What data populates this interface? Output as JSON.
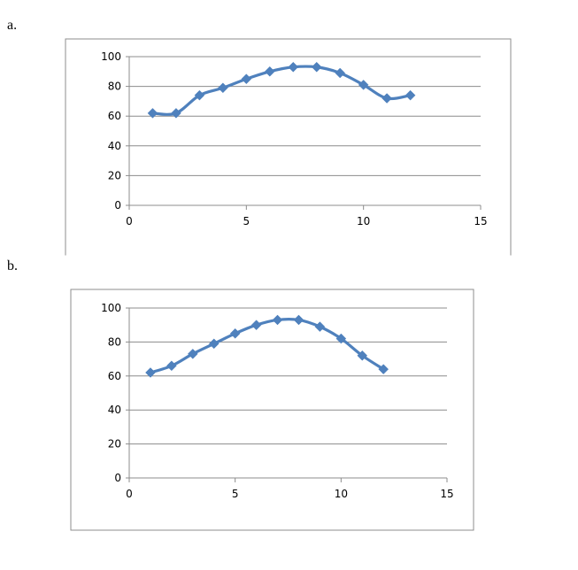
{
  "panels": [
    {
      "label": "a."
    },
    {
      "label": "b."
    }
  ],
  "chart_data": [
    {
      "type": "scatter",
      "title": "",
      "xlabel": "",
      "ylabel": "",
      "xlim": [
        0,
        15
      ],
      "ylim": [
        0,
        100
      ],
      "xticks": [
        0,
        5,
        10,
        15
      ],
      "yticks": [
        0,
        20,
        40,
        60,
        80,
        100
      ],
      "grid": "horizontal",
      "legend": "none",
      "line_style": "smooth",
      "marker": "diamond",
      "color": "#4f81bd",
      "series": [
        {
          "x": [
            1,
            2,
            3,
            4,
            5,
            6,
            7,
            8,
            9,
            10,
            11,
            12
          ],
          "y": [
            62,
            62,
            74,
            79,
            85,
            90,
            93,
            93,
            89,
            81,
            72,
            74
          ]
        }
      ]
    },
    {
      "type": "scatter",
      "title": "",
      "xlabel": "",
      "ylabel": "",
      "xlim": [
        0,
        15
      ],
      "ylim": [
        0,
        100
      ],
      "xticks": [
        0,
        5,
        10,
        15
      ],
      "yticks": [
        0,
        20,
        40,
        60,
        80,
        100
      ],
      "grid": "horizontal",
      "legend": "none",
      "line_style": "smooth",
      "marker": "diamond",
      "color": "#4f81bd",
      "series": [
        {
          "x": [
            1,
            2,
            3,
            4,
            5,
            6,
            7,
            8,
            9,
            10,
            11,
            12
          ],
          "y": [
            62,
            66,
            73,
            79,
            85,
            90,
            93,
            93,
            89,
            82,
            72,
            64
          ]
        }
      ]
    }
  ]
}
